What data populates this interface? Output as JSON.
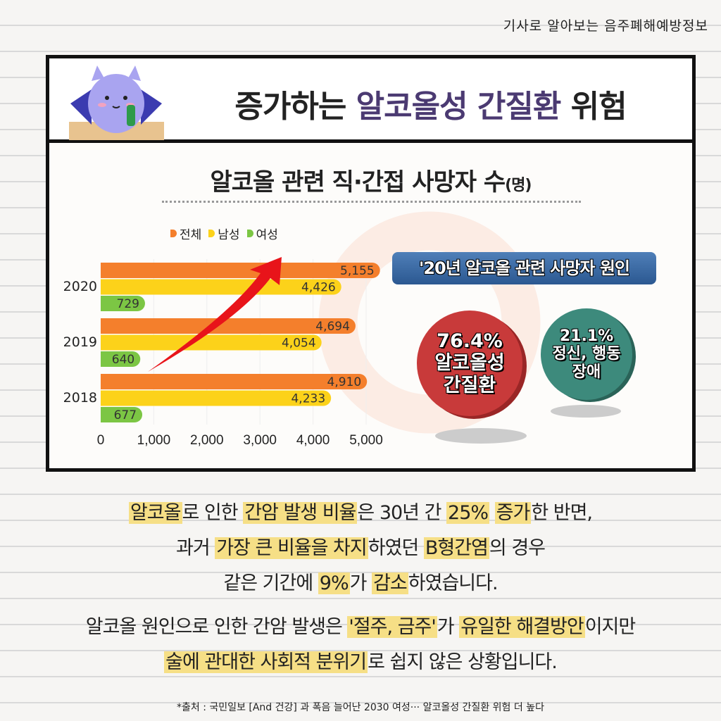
{
  "top_tag": "기사로 알아보는 음주폐해예방정보",
  "header": {
    "title_pre": "증가하는",
    "title_highlight": "알코올성 간질환",
    "title_post": "위험"
  },
  "chart_data": {
    "type": "bar",
    "orientation": "horizontal",
    "title": "알코올 관련 직·간접 사망자 수",
    "title_unit": "(명)",
    "categories": [
      "2020",
      "2019",
      "2018"
    ],
    "series": [
      {
        "name": "전체",
        "color": "#f47f2c",
        "values": [
          5155,
          4694,
          4910
        ],
        "labels": [
          "5,155",
          "4,694",
          "4,910"
        ]
      },
      {
        "name": "남성",
        "color": "#fcd21a",
        "values": [
          4426,
          4054,
          4233
        ],
        "labels": [
          "4,426",
          "4,054",
          "4,233"
        ]
      },
      {
        "name": "여성",
        "color": "#7cc644",
        "values": [
          729,
          640,
          677
        ],
        "labels": [
          "729",
          "640",
          "677"
        ]
      }
    ],
    "xlim": [
      0,
      5000
    ],
    "x_ticks": [
      "0",
      "1,000",
      "2,000",
      "3,000",
      "4,000",
      "5,000"
    ],
    "grid": true,
    "legend_placement": "top",
    "annotation": "increasing-arrow"
  },
  "causes": {
    "title": "'20년 알코올 관련 사망자 원인",
    "items": [
      {
        "percent": "76.4%",
        "label_1": "알코올성",
        "label_2": "간질환",
        "color": "#c83a3a"
      },
      {
        "percent": "21.1%",
        "label_1": "정신, 행동",
        "label_2": "장애",
        "color": "#3d8a7c"
      }
    ]
  },
  "body": [
    [
      [
        "알코올",
        1
      ],
      [
        "로 인한 ",
        0
      ],
      [
        "간암 발생 비율",
        1
      ],
      [
        "은 30년 간 ",
        0
      ],
      [
        "25%",
        1
      ],
      [
        " ",
        0
      ],
      [
        "증가",
        1
      ],
      [
        "한 반면,",
        0
      ]
    ],
    [
      [
        "과거 ",
        0
      ],
      [
        "가장 큰 비율을 차지",
        1
      ],
      [
        "하였던 ",
        0
      ],
      [
        "B형간염",
        1
      ],
      [
        "의 경우",
        0
      ]
    ],
    [
      [
        "같은 기간에 ",
        0
      ],
      [
        "9%",
        1
      ],
      [
        "가 ",
        0
      ],
      [
        "감소",
        1
      ],
      [
        "하였습니다.",
        0
      ]
    ],
    null,
    [
      [
        "알코올 원인으로 인한 간암 발생은 ",
        0
      ],
      [
        "'절주, 금주'",
        1
      ],
      [
        "가 ",
        0
      ],
      [
        "유일한 해결방안",
        1
      ],
      [
        "이지만",
        0
      ]
    ],
    [
      [
        "술에 관대한 사회적 분위기",
        1
      ],
      [
        "로 쉽지 않은 상황입니다.",
        0
      ]
    ]
  ],
  "source": "*출처 : 국민일보 [And 건강] 과 폭음 늘어난 2030 여성··· 알코올성 간질환 위험 더 높다",
  "colors": {
    "highlight": "#f6df86",
    "title_accent": "#4b3a72",
    "border": "#111111"
  }
}
